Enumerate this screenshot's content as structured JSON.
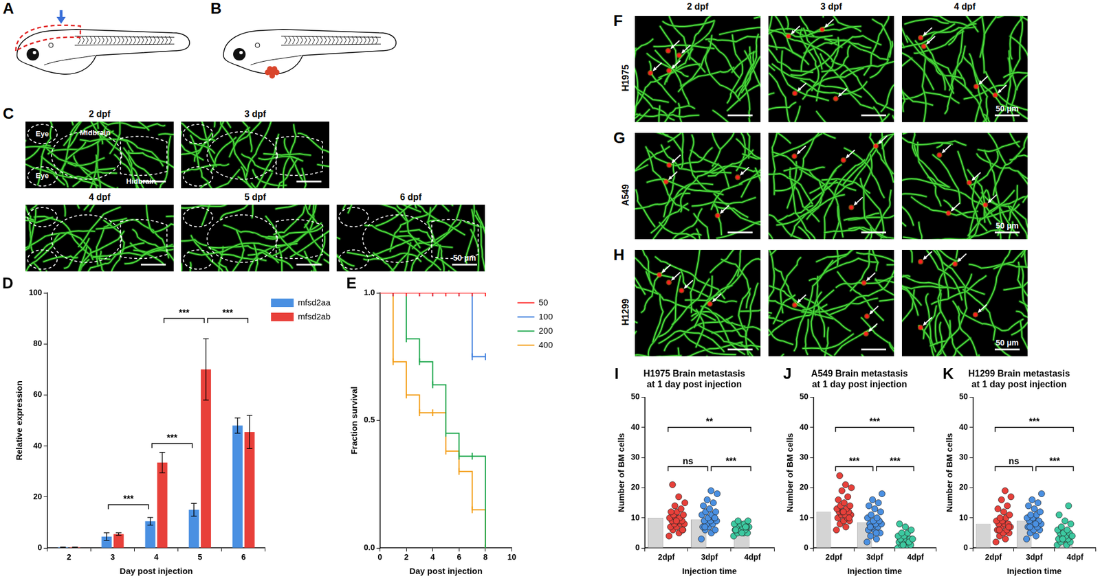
{
  "panels": {
    "A": {
      "letter": "A"
    },
    "B": {
      "letter": "B"
    },
    "C": {
      "letter": "C",
      "images": [
        "2 dpf",
        "3 dpf",
        "4 dpf",
        "5 dpf",
        "6 dpf"
      ],
      "regions": [
        "Eye",
        "Midbrain",
        "Hidbrain",
        "Eye"
      ],
      "scale_bar": "50 μm"
    },
    "FGH": {
      "columns": [
        "2 dpf",
        "3 dpf",
        "4 dpf"
      ],
      "rows": [
        {
          "letter": "F",
          "label": "H1975"
        },
        {
          "letter": "G",
          "label": "A549"
        },
        {
          "letter": "H",
          "label": "H1299"
        }
      ],
      "scale_bar": "50 μm"
    }
  },
  "chart_data": [
    {
      "panel": "D",
      "type": "bar",
      "categories": [
        2,
        3,
        4,
        5,
        6
      ],
      "x_label": "Day post injection",
      "y_label": "Relative expression",
      "ylim": [
        0,
        100
      ],
      "yticks": [
        0,
        20,
        40,
        60,
        80,
        100
      ],
      "grid": false,
      "legend": "right",
      "series": [
        {
          "name": "mfsd2aa",
          "color": "#4a90e2",
          "values": [
            0.3,
            4.5,
            10.5,
            15,
            48
          ],
          "errors": [
            0.1,
            1.5,
            1.5,
            2.5,
            3
          ]
        },
        {
          "name": "mfsd2ab",
          "color": "#e8403a",
          "values": [
            0.3,
            5.5,
            33.5,
            70,
            45.5
          ],
          "errors": [
            0.1,
            0.5,
            4,
            12,
            6.5
          ]
        }
      ],
      "significance": [
        {
          "from": [
            1,
            0
          ],
          "to": [
            2,
            0
          ],
          "y": 17,
          "label": "***"
        },
        {
          "from": [
            2,
            0
          ],
          "to": [
            3,
            0
          ],
          "y": 41,
          "label": "***"
        },
        {
          "from": [
            2,
            1
          ],
          "to": [
            3,
            1
          ],
          "y": 90,
          "label": "***"
        },
        {
          "from": [
            3,
            1
          ],
          "to": [
            4,
            1
          ],
          "y": 90,
          "label": "***"
        }
      ]
    },
    {
      "panel": "E",
      "type": "line",
      "x": [
        0,
        1,
        2,
        3,
        4,
        5,
        6,
        7,
        8
      ],
      "x_label": "Day post injection",
      "y_label": "Fraction survival",
      "xlim": [
        0,
        10
      ],
      "xticks": [
        0,
        2,
        4,
        6,
        8,
        10
      ],
      "ylim": [
        0,
        1
      ],
      "yticks": [
        {
          "value": 0,
          "label": "0.0"
        },
        {
          "value": 0.5,
          "label": "0.5"
        },
        {
          "value": 1,
          "label": "1.0"
        }
      ],
      "grid": false,
      "legend": "right",
      "line_style": "step",
      "marker": "tick",
      "series": [
        {
          "name": "50",
          "color": "#ff2a2a",
          "values": [
            1,
            1,
            1,
            1,
            1,
            1,
            1,
            1,
            1
          ]
        },
        {
          "name": "100",
          "color": "#3b7ddd",
          "values": [
            1,
            1,
            1,
            1,
            1,
            1,
            1,
            0.75,
            0.75
          ]
        },
        {
          "name": "200",
          "color": "#1aa64a",
          "values": [
            1,
            1,
            0.82,
            0.73,
            0.64,
            0.45,
            0.36,
            0.36,
            0
          ]
        },
        {
          "name": "400",
          "color": "#f39c12",
          "values": [
            1,
            0.73,
            0.6,
            0.53,
            0.53,
            0.38,
            0.3,
            0.15,
            0
          ]
        }
      ]
    },
    {
      "panel": "I",
      "type": "bar",
      "title": [
        "H1975 Brain metastasis",
        "at 1 day post injection"
      ],
      "categories": [
        "2dpf",
        "3dpf",
        "4dpf"
      ],
      "x_label": "Injection time",
      "y_label": "Number of BM cells",
      "ylim": [
        0,
        50
      ],
      "yticks": [
        0,
        10,
        20,
        30,
        40,
        50
      ],
      "grid": false,
      "values": [
        10,
        9.5,
        6.5
      ],
      "color": "#d4d4d4",
      "points": [
        {
          "color": "#e8403a",
          "values": [
            4,
            5,
            6,
            6,
            7,
            7,
            8,
            8,
            8,
            9,
            9,
            9,
            10,
            10,
            10,
            11,
            11,
            12,
            12,
            13,
            14,
            15,
            17,
            21,
            6,
            9
          ]
        },
        {
          "color": "#4a90e2",
          "values": [
            3,
            5,
            6,
            6,
            7,
            7,
            8,
            8,
            9,
            9,
            9,
            10,
            10,
            11,
            11,
            12,
            12,
            13,
            14,
            15,
            16,
            18,
            19,
            7,
            10
          ]
        },
        {
          "color": "#3cc9a0",
          "values": [
            4,
            5,
            5,
            5,
            6,
            6,
            6,
            6,
            7,
            7,
            7,
            7,
            8,
            8,
            8,
            9,
            9,
            5,
            6,
            7
          ]
        }
      ],
      "significance": [
        {
          "from": 0,
          "to": 1,
          "y": 27,
          "label": "ns"
        },
        {
          "from": 1,
          "to": 2,
          "y": 27,
          "label": "***"
        },
        {
          "from": 0,
          "to": 2,
          "y": 40,
          "label": "**"
        }
      ]
    },
    {
      "panel": "J",
      "type": "bar",
      "title": [
        "A549 Brain metastasis",
        "at 1 day post injection"
      ],
      "categories": [
        "2dpf",
        "3dpf",
        "4dpf"
      ],
      "x_label": "Injection time",
      "y_label": "Number of BM cells",
      "ylim": [
        0,
        50
      ],
      "yticks": [
        0,
        10,
        20,
        30,
        40,
        50
      ],
      "grid": false,
      "values": [
        12,
        8.5,
        3
      ],
      "color": "#d4d4d4",
      "points": [
        {
          "color": "#e8403a",
          "values": [
            6,
            7,
            8,
            9,
            9,
            10,
            10,
            11,
            11,
            11,
            12,
            12,
            12,
            13,
            13,
            14,
            14,
            15,
            16,
            17,
            19,
            20,
            21,
            24,
            10,
            12
          ]
        },
        {
          "color": "#4a90e2",
          "values": [
            2,
            3,
            4,
            5,
            6,
            6,
            7,
            7,
            8,
            8,
            8,
            9,
            9,
            10,
            10,
            11,
            12,
            13,
            14,
            15,
            16,
            18,
            5,
            7
          ]
        },
        {
          "color": "#3cc9a0",
          "values": [
            0,
            1,
            1,
            1,
            2,
            2,
            2,
            2,
            3,
            3,
            3,
            3,
            4,
            4,
            5,
            5,
            6,
            7,
            8,
            2,
            1,
            3
          ]
        }
      ],
      "significance": [
        {
          "from": 0,
          "to": 1,
          "y": 27,
          "label": "***"
        },
        {
          "from": 1,
          "to": 2,
          "y": 27,
          "label": "***"
        },
        {
          "from": 0,
          "to": 2,
          "y": 40,
          "label": "***"
        }
      ]
    },
    {
      "panel": "K",
      "type": "bar",
      "title": [
        "H1299 Brain metastasis",
        "at 1 day post injection"
      ],
      "categories": [
        "2dpf",
        "3dpf",
        "4dpf"
      ],
      "x_label": "Injection time",
      "y_label": "Number of BM cells",
      "ylim": [
        0,
        50
      ],
      "yticks": [
        0,
        10,
        20,
        30,
        40,
        50
      ],
      "grid": false,
      "values": [
        8,
        9,
        4.5
      ],
      "color": "#d4d4d4",
      "points": [
        {
          "color": "#e8403a",
          "values": [
            2,
            3,
            4,
            5,
            5,
            6,
            6,
            7,
            7,
            8,
            8,
            8,
            9,
            9,
            10,
            10,
            11,
            12,
            13,
            14,
            16,
            17,
            19,
            6,
            7
          ]
        },
        {
          "color": "#4a90e2",
          "values": [
            3,
            4,
            5,
            6,
            6,
            7,
            7,
            8,
            8,
            9,
            9,
            9,
            10,
            10,
            11,
            11,
            12,
            13,
            14,
            15,
            16,
            18,
            8,
            7
          ]
        },
        {
          "color": "#3cc9a0",
          "values": [
            1,
            1,
            2,
            2,
            3,
            3,
            3,
            4,
            4,
            4,
            5,
            5,
            5,
            6,
            6,
            7,
            8,
            9,
            11,
            14,
            3,
            4
          ]
        }
      ],
      "significance": [
        {
          "from": 0,
          "to": 1,
          "y": 27,
          "label": "ns"
        },
        {
          "from": 1,
          "to": 2,
          "y": 27,
          "label": "***"
        },
        {
          "from": 0,
          "to": 2,
          "y": 40,
          "label": "***"
        }
      ]
    }
  ]
}
